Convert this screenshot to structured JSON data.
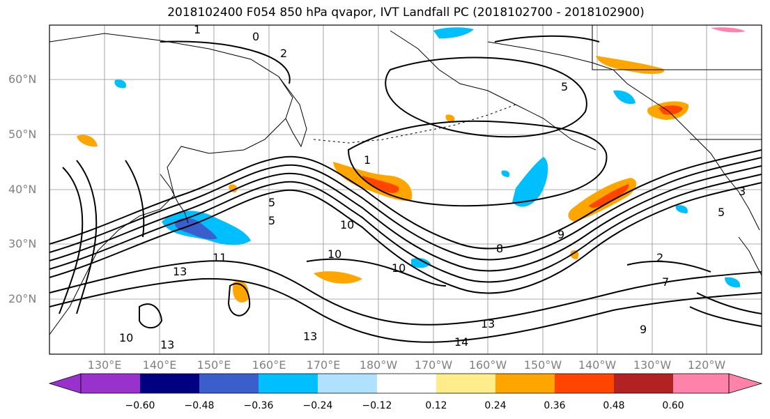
{
  "title": "2018102400 F054 850 hPa qvapor, IVT Landfall PC (2018102700 - 2018102900)",
  "map": {
    "lat_labels": [
      "60°N",
      "50°N",
      "40°N",
      "30°N",
      "20°N"
    ],
    "lon_labels": [
      "130°E",
      "140°E",
      "150°E",
      "160°E",
      "170°E",
      "180°W",
      "170°W",
      "160°W",
      "150°W",
      "140°W",
      "130°W",
      "120°W"
    ],
    "contour_labels": [
      "0",
      "1",
      "2",
      "5",
      "5",
      "1",
      "5",
      "10",
      "10",
      "10",
      "11",
      "13",
      "13",
      "13",
      "13",
      "14",
      "10",
      "9",
      "8",
      "2",
      "7",
      "9",
      "5",
      "3"
    ]
  },
  "colorbar": {
    "tick_labels": [
      "−0.60",
      "−0.48",
      "−0.36",
      "−0.24",
      "−0.12",
      "0.12",
      "0.24",
      "0.36",
      "0.48",
      "0.60"
    ],
    "colors": [
      "#9932cc",
      "#000080",
      "#3a5fcd",
      "#00bfff",
      "#b0e2ff",
      "#ffffff",
      "#ffec8b",
      "#ffa500",
      "#ff4500",
      "#b22222",
      "#ff82ab"
    ]
  }
}
